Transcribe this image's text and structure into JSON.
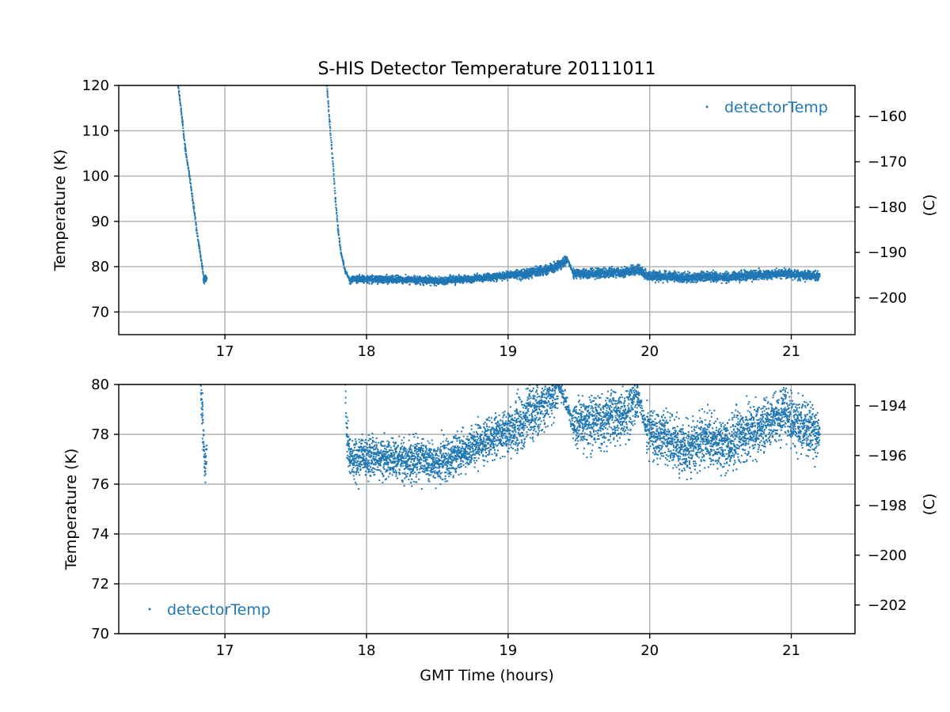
{
  "chart_data": [
    {
      "type": "scatter",
      "title": "S-HIS Detector Temperature 20111011",
      "xlabel": "",
      "ylabel": "Temperature (K)",
      "ylabel_right": "(C)",
      "xlim": [
        16.25,
        21.45
      ],
      "ylim": [
        65,
        120
      ],
      "xticks": [
        17,
        18,
        19,
        20,
        21
      ],
      "yticks": [
        70,
        80,
        90,
        100,
        110,
        120
      ],
      "yticks_right": [
        -200,
        -190,
        -180,
        -170,
        -160
      ],
      "grid": true,
      "legend": {
        "placement": "upper-right",
        "entries": [
          "detectorTemp"
        ]
      },
      "series": [
        {
          "name": "detectorTemp",
          "color": "#1f77b4",
          "marker": "point",
          "points": [
            [
              16.67,
              120
            ],
            [
              16.7,
              112
            ],
            [
              16.72,
              106
            ],
            [
              16.75,
              100
            ],
            [
              16.78,
              93
            ],
            [
              16.8,
              88
            ],
            [
              16.82,
              84
            ],
            [
              16.84,
              80
            ],
            [
              16.85,
              77
            ],
            [
              16.87,
              77.6
            ],
            [
              17.72,
              120
            ],
            [
              17.74,
              112
            ],
            [
              17.76,
              104
            ],
            [
              17.78,
              95
            ],
            [
              17.8,
              88
            ],
            [
              17.82,
              83
            ],
            [
              17.85,
              79
            ],
            [
              17.88,
              77.2
            ],
            [
              17.95,
              77.3
            ],
            [
              18.1,
              77.2
            ],
            [
              18.3,
              77.1
            ],
            [
              18.5,
              76.9
            ],
            [
              18.7,
              77.2
            ],
            [
              18.9,
              77.8
            ],
            [
              19.05,
              78.2
            ],
            [
              19.2,
              78.9
            ],
            [
              19.3,
              79.6
            ],
            [
              19.38,
              80.5
            ],
            [
              19.42,
              81.5
            ],
            [
              19.46,
              78.5
            ],
            [
              19.55,
              78.5
            ],
            [
              19.7,
              78.6
            ],
            [
              19.85,
              78.8
            ],
            [
              19.92,
              79.5
            ],
            [
              19.98,
              78.0
            ],
            [
              20.1,
              77.9
            ],
            [
              20.25,
              77.5
            ],
            [
              20.4,
              77.8
            ],
            [
              20.55,
              77.5
            ],
            [
              20.65,
              78.0
            ],
            [
              20.8,
              78.2
            ],
            [
              20.95,
              78.6
            ],
            [
              21.05,
              78.2
            ],
            [
              21.2,
              78.0
            ]
          ]
        }
      ]
    },
    {
      "type": "scatter",
      "title": "",
      "xlabel": "GMT Time (hours)",
      "ylabel": "Temperature (K)",
      "ylabel_right": "(C)",
      "xlim": [
        16.25,
        21.45
      ],
      "ylim": [
        70,
        80
      ],
      "xticks": [
        17,
        18,
        19,
        20,
        21
      ],
      "yticks": [
        70,
        72,
        74,
        76,
        78,
        80
      ],
      "yticks_right": [
        -202,
        -200,
        -198,
        -196,
        -194
      ],
      "grid": true,
      "legend": {
        "placement": "lower-left",
        "entries": [
          "detectorTemp"
        ]
      },
      "series": [
        {
          "name": "detectorTemp",
          "color": "#1f77b4",
          "marker": "point",
          "points": [
            [
              16.83,
              80
            ],
            [
              16.84,
              79
            ],
            [
              16.85,
              77.5
            ],
            [
              16.86,
              76.5
            ],
            [
              16.87,
              77.4
            ],
            [
              17.85,
              80
            ],
            [
              17.86,
              78
            ],
            [
              17.88,
              77
            ],
            [
              17.95,
              77.1
            ],
            [
              18.1,
              77.0
            ],
            [
              18.3,
              77.0
            ],
            [
              18.5,
              76.9
            ],
            [
              18.7,
              77.3
            ],
            [
              18.9,
              77.9
            ],
            [
              19.05,
              78.3
            ],
            [
              19.2,
              79.0
            ],
            [
              19.3,
              79.6
            ],
            [
              19.36,
              80
            ],
            [
              19.46,
              78.4
            ],
            [
              19.55,
              78.5
            ],
            [
              19.7,
              78.6
            ],
            [
              19.85,
              78.9
            ],
            [
              19.92,
              79.6
            ],
            [
              19.98,
              78.0
            ],
            [
              20.1,
              77.9
            ],
            [
              20.25,
              77.4
            ],
            [
              20.4,
              77.8
            ],
            [
              20.55,
              77.5
            ],
            [
              20.65,
              78.0
            ],
            [
              20.8,
              78.3
            ],
            [
              20.95,
              78.9
            ],
            [
              21.05,
              78.3
            ],
            [
              21.2,
              78.0
            ]
          ]
        }
      ]
    }
  ]
}
